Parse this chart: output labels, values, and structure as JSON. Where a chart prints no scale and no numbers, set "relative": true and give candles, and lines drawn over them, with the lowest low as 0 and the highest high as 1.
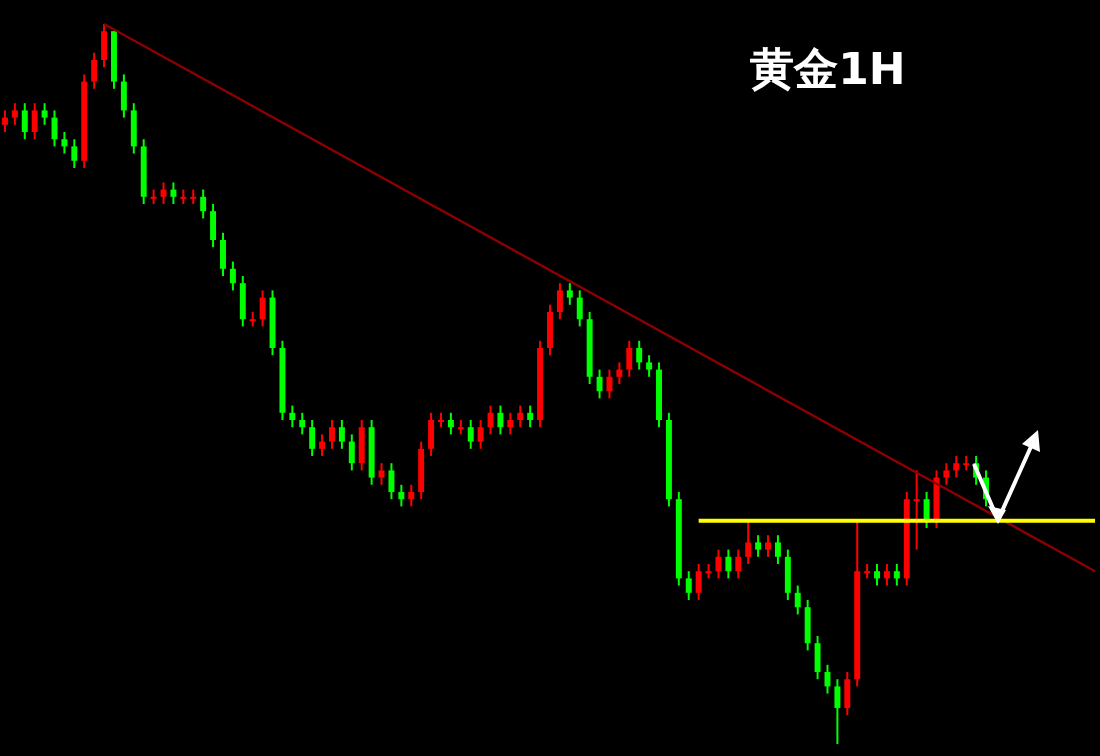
{
  "chart_data": {
    "type": "candlestick",
    "title": "黄金1H",
    "relative": true,
    "tick_labels": false,
    "grid": false,
    "legend": false,
    "colors": [
      "#ff0000",
      "#ff0000",
      "#00ff00",
      "#ff0000",
      "#00ff00",
      "#00ff00",
      "#00ff00",
      "#00ff00",
      "#ff0000",
      "#ff0000",
      "#ff0000",
      "#00ff00",
      "#00ff00",
      "#00ff00",
      "#00ff00",
      "#ff0000",
      "#ff0000",
      "#00ff00",
      "#ff0000",
      "#ff0000",
      "#00ff00",
      "#00ff00",
      "#00ff00",
      "#00ff00",
      "#00ff00",
      "#ff0000",
      "#ff0000",
      "#00ff00",
      "#00ff00",
      "#00ff00",
      "#00ff00",
      "#00ff00",
      "#ff0000",
      "#ff0000",
      "#00ff00",
      "#00ff00",
      "#ff0000",
      "#00ff00",
      "#ff0000",
      "#00ff00",
      "#00ff00",
      "#ff0000",
      "#ff0000",
      "#ff0000",
      "#ff0000",
      "#00ff00",
      "#ff0000",
      "#00ff00",
      "#ff0000",
      "#ff0000",
      "#00ff00",
      "#ff0000",
      "#ff0000",
      "#00ff00",
      "#ff0000",
      "#ff0000",
      "#ff0000",
      "#00ff00",
      "#00ff00",
      "#00ff00",
      "#00ff00",
      "#ff0000",
      "#ff0000",
      "#ff0000",
      "#00ff00",
      "#00ff00",
      "#00ff00",
      "#00ff00",
      "#00ff00",
      "#00ff00",
      "#ff0000",
      "#ff0000",
      "#ff0000",
      "#00ff00",
      "#ff0000",
      "#ff0000",
      "#00ff00",
      "#ff0000",
      "#00ff00",
      "#00ff00",
      "#00ff00",
      "#00ff00",
      "#00ff00",
      "#00ff00",
      "#00ff00",
      "#ff0000",
      "#ff0000",
      "#ff0000",
      "#00ff00",
      "#ff0000",
      "#00ff00",
      "#ff0000",
      "#ff0000",
      "#00ff00",
      "#ff0000",
      "#ff0000",
      "#ff0000",
      "#ff0000",
      "#00ff00",
      "#00ff00",
      null,
      null,
      null,
      null,
      null,
      null,
      null,
      null,
      null,
      null,
      null
    ],
    "categories": [
      null,
      null,
      null,
      null,
      null,
      null,
      null,
      null,
      null,
      null,
      null,
      null,
      null,
      null,
      null,
      null,
      null,
      null,
      null,
      null,
      null,
      null,
      null,
      null,
      null,
      null,
      null,
      null,
      null,
      null,
      null,
      null,
      null,
      null,
      null,
      null,
      null,
      null,
      null,
      null,
      null,
      null,
      null,
      null,
      null,
      null,
      null,
      null,
      null,
      null,
      null,
      null,
      null,
      null,
      null,
      null,
      null,
      null,
      null,
      null,
      null,
      null,
      null,
      null,
      null,
      null,
      null,
      null,
      null,
      null,
      null,
      null,
      null,
      null,
      null,
      null,
      null,
      null,
      null,
      null,
      null,
      null,
      null,
      null,
      null,
      null,
      null,
      null,
      null,
      null,
      null,
      null,
      null,
      null,
      null,
      null,
      null,
      null,
      null,
      null,
      null,
      null,
      null,
      null,
      null,
      null,
      null,
      null,
      null,
      null,
      null
    ],
    "ohlc": [
      [
        0.86,
        0.88,
        0.85,
        0.87
      ],
      [
        0.87,
        0.89,
        0.86,
        0.88
      ],
      [
        0.88,
        0.89,
        0.84,
        0.85
      ],
      [
        0.85,
        0.89,
        0.84,
        0.88
      ],
      [
        0.88,
        0.89,
        0.86,
        0.87
      ],
      [
        0.87,
        0.88,
        0.83,
        0.84
      ],
      [
        0.84,
        0.85,
        0.82,
        0.83
      ],
      [
        0.83,
        0.84,
        0.8,
        0.81
      ],
      [
        0.81,
        0.93,
        0.8,
        0.92
      ],
      [
        0.92,
        0.96,
        0.91,
        0.95
      ],
      [
        0.95,
        1.0,
        0.94,
        0.99
      ],
      [
        0.99,
        0.99,
        0.91,
        0.92
      ],
      [
        0.92,
        0.93,
        0.87,
        0.88
      ],
      [
        0.88,
        0.89,
        0.82,
        0.83
      ],
      [
        0.83,
        0.84,
        0.75,
        0.76
      ],
      [
        0.76,
        0.77,
        0.75,
        0.76
      ],
      [
        0.76,
        0.78,
        0.75,
        0.77
      ],
      [
        0.77,
        0.78,
        0.75,
        0.76
      ],
      [
        0.76,
        0.77,
        0.75,
        0.76
      ],
      [
        0.76,
        0.77,
        0.75,
        0.76
      ],
      [
        0.76,
        0.77,
        0.73,
        0.74
      ],
      [
        0.74,
        0.75,
        0.69,
        0.7
      ],
      [
        0.7,
        0.71,
        0.65,
        0.66
      ],
      [
        0.66,
        0.67,
        0.63,
        0.64
      ],
      [
        0.64,
        0.65,
        0.58,
        0.59
      ],
      [
        0.59,
        0.6,
        0.58,
        0.59
      ],
      [
        0.59,
        0.63,
        0.58,
        0.62
      ],
      [
        0.62,
        0.63,
        0.54,
        0.55
      ],
      [
        0.55,
        0.56,
        0.45,
        0.46
      ],
      [
        0.46,
        0.47,
        0.44,
        0.45
      ],
      [
        0.45,
        0.46,
        0.43,
        0.44
      ],
      [
        0.44,
        0.45,
        0.4,
        0.41
      ],
      [
        0.41,
        0.43,
        0.4,
        0.42
      ],
      [
        0.42,
        0.45,
        0.41,
        0.44
      ],
      [
        0.44,
        0.45,
        0.41,
        0.42
      ],
      [
        0.42,
        0.43,
        0.38,
        0.39
      ],
      [
        0.39,
        0.45,
        0.38,
        0.44
      ],
      [
        0.44,
        0.45,
        0.36,
        0.37
      ],
      [
        0.37,
        0.39,
        0.36,
        0.38
      ],
      [
        0.38,
        0.39,
        0.34,
        0.35
      ],
      [
        0.35,
        0.36,
        0.33,
        0.34
      ],
      [
        0.34,
        0.36,
        0.33,
        0.35
      ],
      [
        0.35,
        0.42,
        0.34,
        0.41
      ],
      [
        0.41,
        0.46,
        0.4,
        0.45
      ],
      [
        0.45,
        0.46,
        0.44,
        0.45
      ],
      [
        0.45,
        0.46,
        0.43,
        0.44
      ],
      [
        0.44,
        0.45,
        0.43,
        0.44
      ],
      [
        0.44,
        0.45,
        0.41,
        0.42
      ],
      [
        0.42,
        0.45,
        0.41,
        0.44
      ],
      [
        0.44,
        0.47,
        0.43,
        0.46
      ],
      [
        0.46,
        0.47,
        0.43,
        0.44
      ],
      [
        0.44,
        0.46,
        0.43,
        0.45
      ],
      [
        0.45,
        0.47,
        0.44,
        0.46
      ],
      [
        0.46,
        0.47,
        0.44,
        0.45
      ],
      [
        0.45,
        0.56,
        0.44,
        0.55
      ],
      [
        0.55,
        0.61,
        0.54,
        0.6
      ],
      [
        0.6,
        0.64,
        0.59,
        0.63
      ],
      [
        0.63,
        0.64,
        0.61,
        0.62
      ],
      [
        0.62,
        0.63,
        0.58,
        0.59
      ],
      [
        0.59,
        0.6,
        0.5,
        0.51
      ],
      [
        0.51,
        0.52,
        0.48,
        0.49
      ],
      [
        0.49,
        0.52,
        0.48,
        0.51
      ],
      [
        0.51,
        0.53,
        0.5,
        0.52
      ],
      [
        0.52,
        0.56,
        0.51,
        0.55
      ],
      [
        0.55,
        0.56,
        0.52,
        0.53
      ],
      [
        0.53,
        0.54,
        0.51,
        0.52
      ],
      [
        0.52,
        0.53,
        0.44,
        0.45
      ],
      [
        0.45,
        0.46,
        0.33,
        0.34
      ],
      [
        0.34,
        0.35,
        0.22,
        0.23
      ],
      [
        0.23,
        0.24,
        0.2,
        0.21
      ],
      [
        0.21,
        0.25,
        0.2,
        0.24
      ],
      [
        0.24,
        0.25,
        0.23,
        0.24
      ],
      [
        0.24,
        0.27,
        0.23,
        0.26
      ],
      [
        0.26,
        0.27,
        0.23,
        0.24
      ],
      [
        0.24,
        0.27,
        0.23,
        0.26
      ],
      [
        0.26,
        0.31,
        0.25,
        0.28
      ],
      [
        0.28,
        0.29,
        0.26,
        0.27
      ],
      [
        0.27,
        0.29,
        0.26,
        0.28
      ],
      [
        0.28,
        0.29,
        0.25,
        0.26
      ],
      [
        0.26,
        0.27,
        0.2,
        0.21
      ],
      [
        0.21,
        0.22,
        0.18,
        0.19
      ],
      [
        0.19,
        0.2,
        0.13,
        0.14
      ],
      [
        0.14,
        0.15,
        0.09,
        0.1
      ],
      [
        0.1,
        0.11,
        0.07,
        0.08
      ],
      [
        0.08,
        0.09,
        0.0,
        0.05
      ],
      [
        0.05,
        0.1,
        0.04,
        0.09
      ],
      [
        0.09,
        0.31,
        0.08,
        0.24
      ],
      [
        0.24,
        0.25,
        0.23,
        0.24
      ],
      [
        0.24,
        0.25,
        0.22,
        0.23
      ],
      [
        0.23,
        0.25,
        0.22,
        0.24
      ],
      [
        0.24,
        0.25,
        0.22,
        0.23
      ],
      [
        0.23,
        0.35,
        0.22,
        0.34
      ],
      [
        0.34,
        0.38,
        0.27,
        0.34
      ],
      [
        0.34,
        0.35,
        0.3,
        0.31
      ],
      [
        0.31,
        0.38,
        0.3,
        0.37
      ],
      [
        0.37,
        0.39,
        0.36,
        0.38
      ],
      [
        0.38,
        0.4,
        0.37,
        0.39
      ],
      [
        0.39,
        0.4,
        0.38,
        0.39
      ],
      [
        0.39,
        0.4,
        0.36,
        0.37
      ],
      [
        0.37,
        0.38,
        0.33,
        0.34
      ],
      null,
      null,
      null,
      null,
      null,
      null,
      null,
      null,
      null,
      null,
      null
    ],
    "series": [
      {
        "type": "line",
        "color": "#8b0000",
        "values": [
          null,
          null,
          null,
          null,
          null,
          null,
          null,
          null,
          null,
          null,
          1.0,
          null,
          null,
          null,
          null,
          null,
          null,
          null,
          null,
          null,
          null,
          null,
          null,
          null,
          null,
          null,
          null,
          null,
          null,
          null,
          null,
          null,
          null,
          null,
          null,
          null,
          null,
          null,
          null,
          null,
          null,
          null,
          null,
          null,
          null,
          null,
          null,
          null,
          null,
          null,
          null,
          null,
          null,
          null,
          null,
          null,
          null,
          null,
          null,
          null,
          null,
          null,
          null,
          null,
          null,
          null,
          null,
          null,
          null,
          null,
          null,
          null,
          null,
          null,
          null,
          null,
          null,
          null,
          null,
          null,
          null,
          null,
          null,
          null,
          null,
          null,
          null,
          null,
          null,
          null,
          null,
          null,
          null,
          null,
          null,
          null,
          null,
          null,
          null,
          null,
          null,
          null,
          null,
          null,
          null,
          null,
          null,
          null,
          null,
          null,
          0.24
        ]
      },
      {
        "type": "line",
        "color": "#ffff00",
        "values": [
          null,
          null,
          null,
          null,
          null,
          null,
          null,
          null,
          null,
          null,
          null,
          null,
          null,
          null,
          null,
          null,
          null,
          null,
          null,
          null,
          null,
          null,
          null,
          null,
          null,
          null,
          null,
          null,
          null,
          null,
          null,
          null,
          null,
          null,
          null,
          null,
          null,
          null,
          null,
          null,
          null,
          null,
          null,
          null,
          null,
          null,
          null,
          null,
          null,
          null,
          null,
          null,
          null,
          null,
          null,
          null,
          null,
          null,
          null,
          null,
          null,
          null,
          null,
          null,
          null,
          null,
          null,
          null,
          null,
          null,
          0.31,
          null,
          null,
          null,
          null,
          null,
          null,
          null,
          null,
          null,
          null,
          null,
          null,
          null,
          null,
          null,
          null,
          null,
          null,
          null,
          null,
          null,
          null,
          null,
          null,
          null,
          null,
          null,
          null,
          null,
          null,
          null,
          null,
          null,
          null,
          null,
          null,
          null,
          null,
          null,
          0.31
        ]
      }
    ]
  }
}
